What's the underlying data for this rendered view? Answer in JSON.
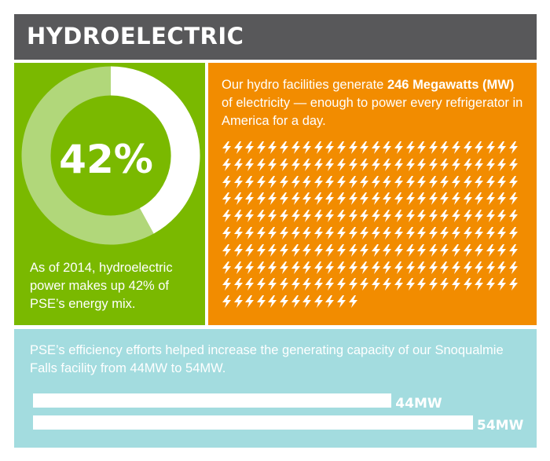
{
  "header": {
    "title": "HYDROELECTRIC"
  },
  "share": {
    "value": 42,
    "label": "42%",
    "caption": "As of 2014, hydroelectric power makes up 42% of PSE’s energy mix."
  },
  "capacity": {
    "text_before": "Our hydro facilities generate ",
    "highlight": "246 Megawatts (MW)",
    "text_after": " of electricity — enough to power every refrigerator in America for a day.",
    "bolt_icon": "lightning-bolt-icon",
    "bolt_count": 246
  },
  "efficiency": {
    "text": "PSE’s efficiency efforts helped increase the generating capacity of our Snoqualmie Falls facility from 44MW to 54MW.",
    "bars": [
      {
        "label": "44MW",
        "value": 44
      },
      {
        "label": "54MW",
        "value": 54
      }
    ]
  },
  "colors": {
    "header": "#58585a",
    "green": "#7ab900",
    "green_light": "#b1d77a",
    "orange": "#f28c00",
    "teal": "#a3dcdf",
    "white": "#ffffff"
  }
}
